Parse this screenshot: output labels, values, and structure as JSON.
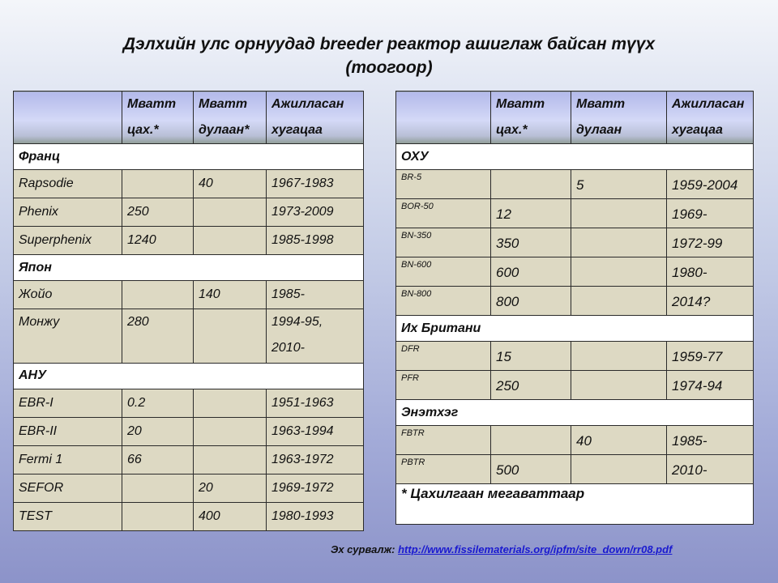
{
  "title": {
    "line1": "Дэлхийн улс орнуудад breeder реактор ашиглаж байсан түүх",
    "line2": "(тоогоор)"
  },
  "left_table": {
    "headers": [
      [
        "",
        ""
      ],
      [
        "Мватт",
        "цах.*"
      ],
      [
        "Мватт",
        "дулаан*"
      ],
      [
        "Ажилласан",
        "хугацаа"
      ]
    ],
    "groups": [
      {
        "country": "Франц",
        "rows": [
          [
            "Rapsodie",
            "",
            "40",
            "1967-1983"
          ],
          [
            "Phenix",
            "250",
            "",
            "1973-2009"
          ],
          [
            "Superphenix",
            "1240",
            "",
            "1985-1998"
          ]
        ]
      },
      {
        "country": "Япон",
        "rows": [
          [
            "Жойо",
            "",
            "140",
            "1985-"
          ],
          [
            "Монжу",
            "280",
            "",
            "1994-95,\n2010-"
          ]
        ]
      },
      {
        "country": "АНУ",
        "rows": [
          [
            "EBR-I",
            "0.2",
            "",
            "1951-1963"
          ],
          [
            "EBR-II",
            "20",
            "",
            "1963-1994"
          ],
          [
            "Fermi 1",
            "66",
            "",
            "1963-1972"
          ],
          [
            "SEFOR",
            "",
            "20",
            "1969-1972"
          ],
          [
            "TEST",
            "",
            "400",
            "1980-1993"
          ]
        ]
      }
    ]
  },
  "right_table": {
    "headers": [
      [
        "",
        ""
      ],
      [
        "Мватт",
        "цах.*"
      ],
      [
        " Мватт",
        "дулаан"
      ],
      [
        "Ажилласан",
        "хугацаа"
      ]
    ],
    "groups": [
      {
        "country": "ОХУ",
        "rows": [
          [
            "BR-5",
            "",
            "5",
            "1959-2004"
          ],
          [
            "BOR-50",
            "12",
            "",
            "1969-"
          ],
          [
            "BN-350",
            "350",
            "",
            "1972-99"
          ],
          [
            "BN-600",
            "600",
            "",
            "1980-"
          ],
          [
            "BN-800",
            "800",
            "",
            "2014?"
          ]
        ]
      },
      {
        "country": "Их Британи",
        "rows": [
          [
            "DFR",
            "15",
            "",
            "1959-77"
          ],
          [
            "PFR",
            "250",
            "",
            "1974-94"
          ]
        ]
      },
      {
        "country": "Энэтхэг",
        "rows": [
          [
            "FBTR",
            "",
            "40",
            "1985-"
          ],
          [
            "PBTR",
            "500",
            "",
            "2010-"
          ]
        ]
      }
    ],
    "footnote": "* Цахилгаан  мегаваттаар"
  },
  "source": {
    "label": "Эх сурвалж: ",
    "link": "http://www.fissilematerials.org/ipfm/site_down/rr08.pdf"
  }
}
